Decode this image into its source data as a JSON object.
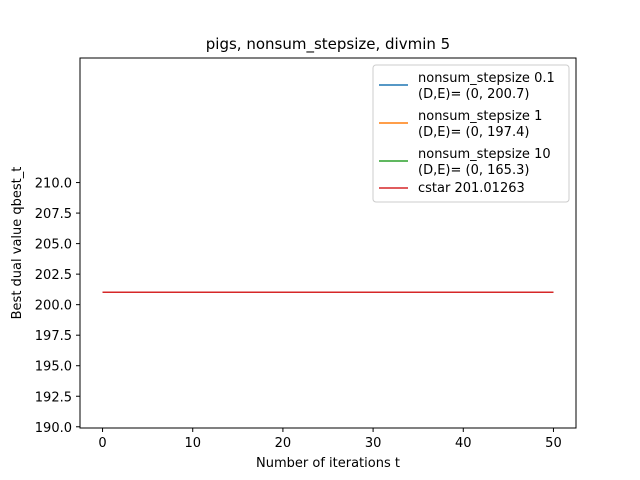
{
  "chart_data": {
    "type": "line",
    "title": "pigs, nonsum_stepsize, divmin 5",
    "xlabel": "Number of iterations t",
    "ylabel": "Best dual value qbest_t",
    "xlim": [
      -2.5,
      52.5
    ],
    "ylim": [
      189.9,
      220.2
    ],
    "xticks": [
      0,
      10,
      20,
      30,
      40,
      50
    ],
    "yticks": [
      190.0,
      192.5,
      195.0,
      197.5,
      200.0,
      202.5,
      205.0,
      207.5,
      210.0
    ],
    "ytick_labels": [
      "190.0",
      "192.5",
      "195.0",
      "197.5",
      "200.0",
      "202.5",
      "205.0",
      "207.5",
      "210.0"
    ],
    "grid": false,
    "legend_position": "top-right",
    "series": [
      {
        "name": "nonsum_stepsize 0.1",
        "name_line2": "(D,E)= (0, 200.7)",
        "color": "#1f77b4",
        "x": [
          0,
          50
        ],
        "y": [
          201.01263,
          201.01263
        ]
      },
      {
        "name": "nonsum_stepsize 1",
        "name_line2": "(D,E)= (0, 197.4)",
        "color": "#ff7f0e",
        "x": [
          0,
          50
        ],
        "y": [
          201.01263,
          201.01263
        ]
      },
      {
        "name": "nonsum_stepsize 10",
        "name_line2": "(D,E)= (0, 165.3)",
        "color": "#2ca02c",
        "x": [
          0,
          50
        ],
        "y": [
          201.01263,
          201.01263
        ]
      },
      {
        "name": "cstar 201.01263",
        "name_line2": "",
        "color": "#d62728",
        "x": [
          0,
          50
        ],
        "y": [
          201.01263,
          201.01263
        ]
      }
    ]
  }
}
